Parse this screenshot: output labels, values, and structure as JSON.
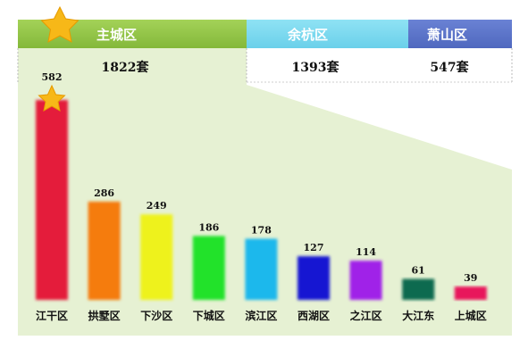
{
  "colors": {
    "main_header": "#8fc23f",
    "yuhang_header": "#78d8ee",
    "xiaoshan_header": "#5a73c8",
    "panel_bg": "#e6f1d3",
    "star": "#f7b818"
  },
  "districts": [
    {
      "name": "主城区",
      "total": "1822套"
    },
    {
      "name": "余杭区",
      "total": "1393套"
    },
    {
      "name": "萧山区",
      "total": "547套"
    }
  ],
  "chart_data": {
    "type": "bar",
    "categories": [
      "江干区",
      "拱墅区",
      "下沙区",
      "下城区",
      "滨江区",
      "西湖区",
      "之江区",
      "大江东",
      "上城区"
    ],
    "values": [
      582,
      286,
      249,
      186,
      178,
      127,
      114,
      61,
      39
    ],
    "value_labels": [
      "582",
      "286",
      "249",
      "186",
      "178",
      "127",
      "114",
      "61",
      "39"
    ],
    "bar_colors": [
      "#e41a3a",
      "#f57c0c",
      "#eef21e",
      "#22e22a",
      "#1eb8ec",
      "#1212d2",
      "#a020e8",
      "#0e6b50",
      "#e8195c"
    ],
    "ylim": [
      0,
      600
    ],
    "grid": false,
    "legend": "none"
  }
}
